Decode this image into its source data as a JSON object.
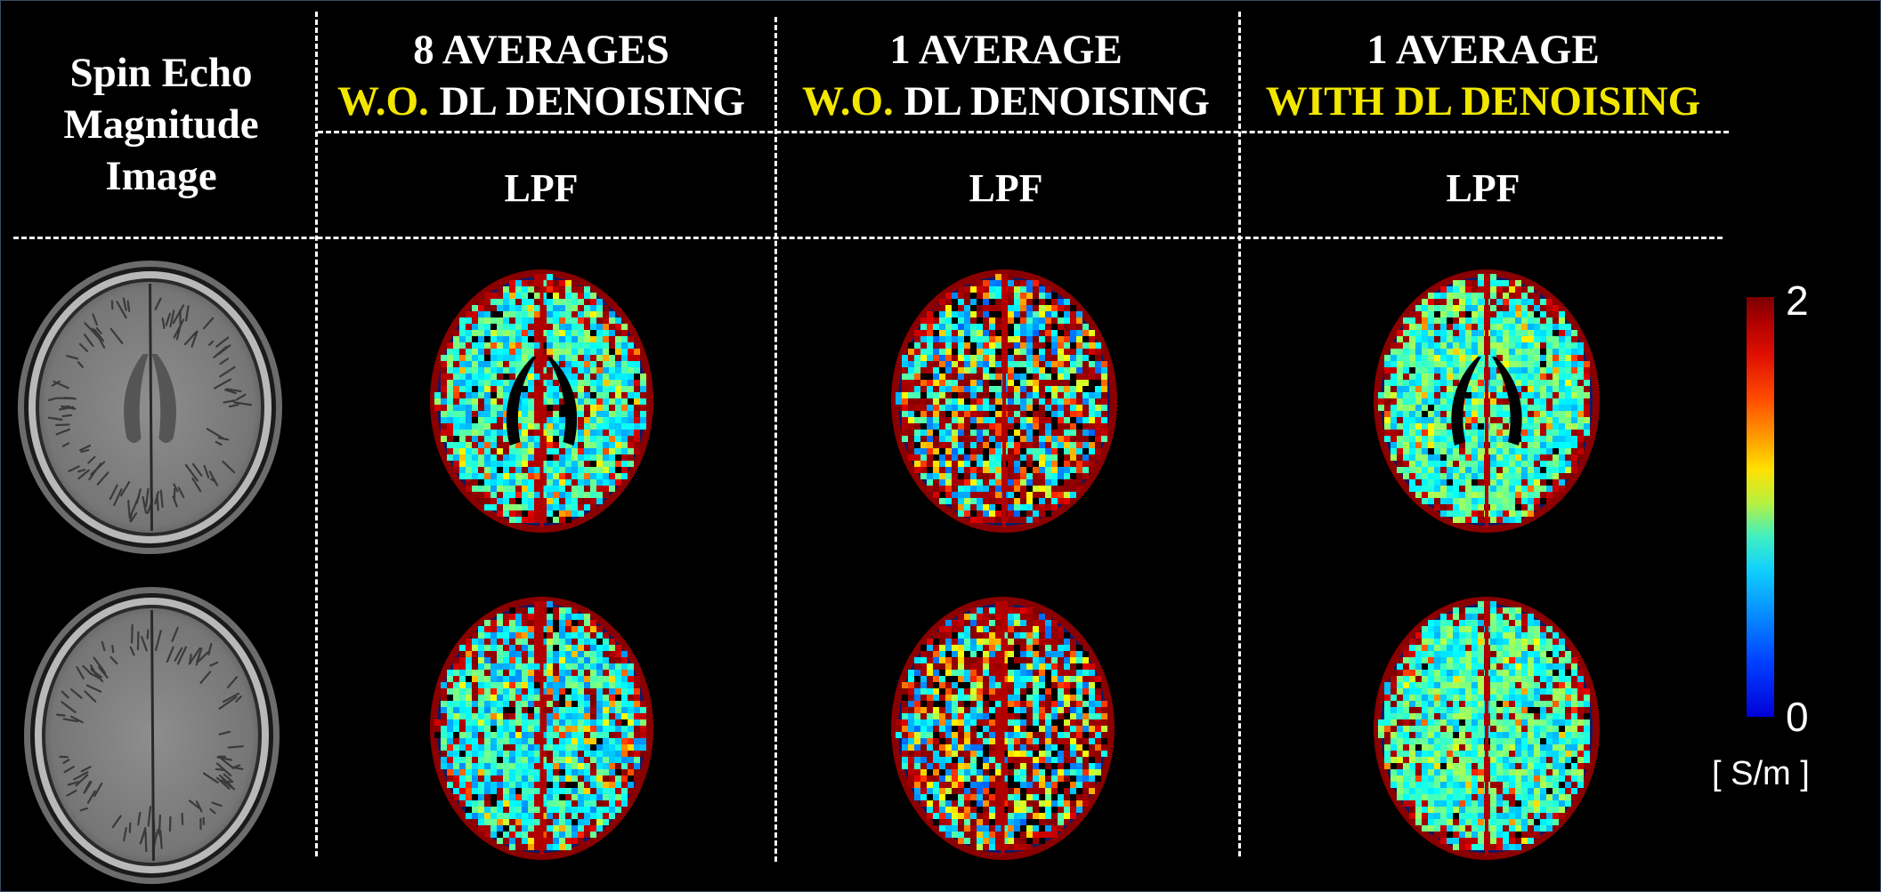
{
  "headers": {
    "col0": {
      "line1": "Spin Echo",
      "line2": "Magnitude",
      "line3": "Image"
    },
    "col1": {
      "line1": "8 AVERAGES",
      "line2_yellow": "W.O.",
      "line2_white": " DL DENOISING",
      "sub": "LPF"
    },
    "col2": {
      "line1": "1 AVERAGE",
      "line2_yellow": "W.O.",
      "line2_white": " DL DENOISING",
      "sub": "LPF"
    },
    "col3": {
      "line1": "1 AVERAGE",
      "line2_yellow": "WITH DL DENOISING",
      "sub": "LPF"
    }
  },
  "colorbar": {
    "max_label": "2",
    "min_label": "0",
    "unit": "[ S/m ]",
    "min_value": 0,
    "max_value": 2,
    "colormap": "jet"
  },
  "colors": {
    "background": "#000000",
    "text": "#ffffff",
    "highlight": "#f2e600"
  }
}
